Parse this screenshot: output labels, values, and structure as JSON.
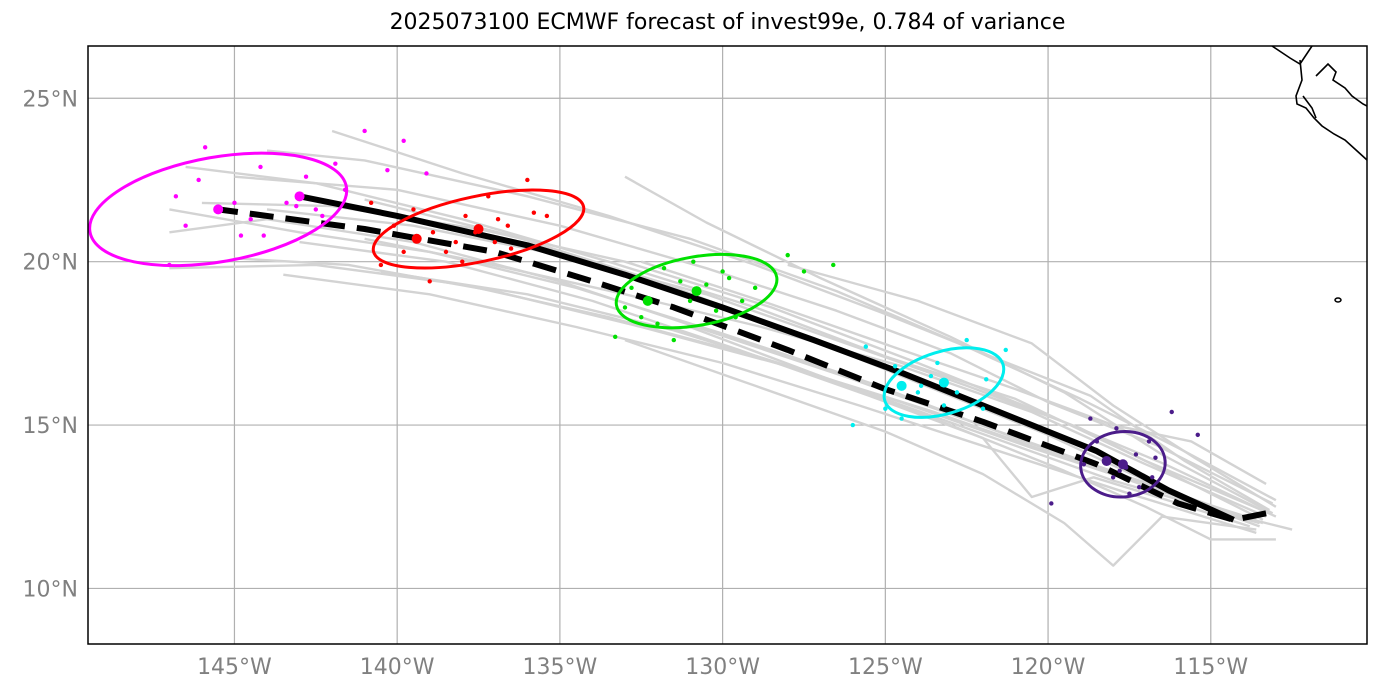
{
  "title": "2025073100 ECMWF forecast of invest99e, 0.784 of variance",
  "axes": {
    "x_ticks": [
      {
        "value": -145,
        "label": "145°W"
      },
      {
        "value": -140,
        "label": "140°W"
      },
      {
        "value": -135,
        "label": "135°W"
      },
      {
        "value": -130,
        "label": "130°W"
      },
      {
        "value": -125,
        "label": "125°W"
      },
      {
        "value": -120,
        "label": "120°W"
      },
      {
        "value": -115,
        "label": "115°W"
      }
    ],
    "y_ticks": [
      {
        "value": 10,
        "label": "10°N"
      },
      {
        "value": 15,
        "label": "15°N"
      },
      {
        "value": 20,
        "label": "20°N"
      },
      {
        "value": 25,
        "label": "25°N"
      }
    ],
    "xlim": [
      -149.5,
      -110.2
    ],
    "ylim": [
      8.3,
      26.6
    ]
  },
  "colors": {
    "grid": "#b0b0b0",
    "tick_label": "#808080",
    "ensemble": "#d3d3d3",
    "magenta": "#ff00ff",
    "red": "#ff0000",
    "green": "#00e000",
    "cyan": "#00eeee",
    "purple": "#4b1c8a",
    "coast": "#000000"
  },
  "chart_data": {
    "type": "line",
    "mean_track": {
      "style": "solid-black",
      "points": [
        [
          -114.3,
          12.1
        ],
        [
          -116.3,
          13.0
        ],
        [
          -118.5,
          14.2
        ],
        [
          -121.0,
          15.2
        ],
        [
          -124.5,
          16.6
        ],
        [
          -127.2,
          17.6
        ],
        [
          -130.0,
          18.6
        ],
        [
          -133.0,
          19.6
        ],
        [
          -136.0,
          20.5
        ],
        [
          -140.0,
          21.4
        ],
        [
          -143.0,
          22.0
        ]
      ]
    },
    "control_track": {
      "style": "dashed-black",
      "points": [
        [
          -113.3,
          12.3
        ],
        [
          -114.3,
          12.1
        ],
        [
          -116.0,
          12.6
        ],
        [
          -118.5,
          13.8
        ],
        [
          -122.0,
          15.1
        ],
        [
          -125.0,
          16.1
        ],
        [
          -128.0,
          17.3
        ],
        [
          -131.5,
          18.6
        ],
        [
          -134.0,
          19.4
        ],
        [
          -137.0,
          20.3
        ],
        [
          -141.0,
          21.0
        ],
        [
          -145.5,
          21.6
        ]
      ]
    },
    "ensemble_members": [
      [
        [
          -113.0,
          12.2
        ],
        [
          -116.4,
          13.8
        ],
        [
          -120.0,
          15.3
        ],
        [
          -124.0,
          16.9
        ],
        [
          -128.5,
          18.6
        ],
        [
          -133.0,
          20.0
        ],
        [
          -137.5,
          21.0
        ],
        [
          -142.0,
          21.7
        ],
        [
          -146.0,
          21.8
        ]
      ],
      [
        [
          -113.5,
          12.0
        ],
        [
          -117.0,
          13.2
        ],
        [
          -121.0,
          14.6
        ],
        [
          -125.5,
          16.3
        ],
        [
          -130.0,
          17.8
        ],
        [
          -134.5,
          19.2
        ],
        [
          -139.0,
          20.3
        ],
        [
          -143.0,
          20.9
        ],
        [
          -147.0,
          21.6
        ]
      ],
      [
        [
          -113.0,
          12.7
        ],
        [
          -116.0,
          14.3
        ],
        [
          -119.0,
          15.8
        ],
        [
          -122.5,
          17.4
        ],
        [
          -126.5,
          19.1
        ],
        [
          -131.0,
          20.7
        ],
        [
          -136.0,
          22.0
        ],
        [
          -141.0,
          23.1
        ],
        [
          -144.0,
          23.4
        ]
      ],
      [
        [
          -113.6,
          12.1
        ],
        [
          -116.8,
          13.1
        ],
        [
          -120.5,
          14.3
        ],
        [
          -124.5,
          15.7
        ],
        [
          -129.0,
          17.1
        ],
        [
          -133.5,
          18.3
        ],
        [
          -138.0,
          19.3
        ],
        [
          -142.5,
          19.9
        ],
        [
          -147.0,
          19.8
        ]
      ],
      [
        [
          -113.2,
          12.4
        ],
        [
          -115.8,
          13.9
        ],
        [
          -118.7,
          15.9
        ],
        [
          -121.5,
          17.0
        ],
        [
          -125.0,
          18.4
        ],
        [
          -129.0,
          19.9
        ],
        [
          -133.5,
          21.4
        ],
        [
          -138.0,
          22.7
        ],
        [
          -142.0,
          24.0
        ]
      ],
      [
        [
          -113.4,
          12.0
        ],
        [
          -117.5,
          13.4
        ],
        [
          -121.5,
          14.8
        ],
        [
          -126.0,
          16.4
        ],
        [
          -130.5,
          17.9
        ],
        [
          -135.0,
          19.4
        ],
        [
          -139.5,
          20.6
        ],
        [
          -144.0,
          21.3
        ],
        [
          -147.0,
          20.9
        ]
      ],
      [
        [
          -113.1,
          12.3
        ],
        [
          -116.5,
          14.1
        ],
        [
          -119.5,
          16.0
        ],
        [
          -123.0,
          17.7
        ],
        [
          -127.0,
          19.5
        ],
        [
          -130.5,
          21.2
        ],
        [
          -133.0,
          22.6
        ]
      ],
      [
        [
          -113.5,
          11.9
        ],
        [
          -116.0,
          12.8
        ],
        [
          -119.5,
          14.0
        ],
        [
          -123.5,
          15.4
        ],
        [
          -128.0,
          16.8
        ],
        [
          -132.5,
          18.0
        ],
        [
          -137.0,
          19.1
        ],
        [
          -141.5,
          19.9
        ],
        [
          -145.0,
          20.1
        ]
      ],
      [
        [
          -113.3,
          12.2
        ],
        [
          -117.0,
          13.8
        ],
        [
          -120.5,
          15.4
        ],
        [
          -124.5,
          16.8
        ],
        [
          -128.8,
          18.0
        ],
        [
          -133.0,
          19.0
        ],
        [
          -137.5,
          20.0
        ],
        [
          -141.0,
          20.7
        ]
      ],
      [
        [
          -113.0,
          12.5
        ],
        [
          -115.5,
          14.0
        ],
        [
          -118.0,
          15.6
        ],
        [
          -120.5,
          17.5
        ],
        [
          -124.0,
          18.8
        ],
        [
          -128.0,
          19.9
        ]
      ],
      [
        [
          -113.6,
          11.8
        ],
        [
          -116.5,
          12.2
        ],
        [
          -118.0,
          10.7
        ],
        [
          -119.5,
          12.0
        ],
        [
          -122.0,
          13.5
        ],
        [
          -125.0,
          14.8
        ],
        [
          -129.0,
          16.2
        ],
        [
          -133.0,
          17.6
        ]
      ],
      [
        [
          -113.8,
          11.9
        ],
        [
          -116.0,
          12.6
        ],
        [
          -118.6,
          13.4
        ],
        [
          -120.5,
          12.8
        ],
        [
          -122.0,
          14.6
        ],
        [
          -125.5,
          15.9
        ],
        [
          -129.5,
          17.3
        ],
        [
          -134.0,
          18.8
        ],
        [
          -138.5,
          20.0
        ],
        [
          -143.0,
          20.6
        ]
      ],
      [
        [
          -113.1,
          12.6
        ],
        [
          -116.7,
          14.4
        ],
        [
          -120.0,
          15.7
        ],
        [
          -123.0,
          17.2
        ],
        [
          -126.5,
          18.5
        ],
        [
          -130.5,
          19.8
        ],
        [
          -135.0,
          21.1
        ],
        [
          -140.0,
          22.2
        ],
        [
          -145.0,
          22.6
        ]
      ],
      [
        [
          -113.5,
          12.0
        ],
        [
          -118.0,
          13.3
        ],
        [
          -122.5,
          14.9
        ],
        [
          -127.0,
          16.5
        ],
        [
          -131.5,
          17.9
        ],
        [
          -136.0,
          19.0
        ],
        [
          -140.5,
          19.7
        ]
      ],
      [
        [
          -113.2,
          12.3
        ],
        [
          -117.0,
          13.9
        ],
        [
          -121.0,
          15.8
        ],
        [
          -125.0,
          17.1
        ],
        [
          -129.0,
          18.6
        ],
        [
          -133.5,
          20.0
        ],
        [
          -138.0,
          21.3
        ],
        [
          -142.5,
          22.4
        ],
        [
          -146.5,
          22.9
        ]
      ],
      [
        [
          -113.4,
          12.1
        ],
        [
          -116.2,
          13.5
        ],
        [
          -119.0,
          14.9
        ],
        [
          -122.5,
          16.2
        ],
        [
          -126.5,
          17.6
        ],
        [
          -130.5,
          19.0
        ],
        [
          -135.0,
          20.2
        ],
        [
          -139.5,
          21.1
        ],
        [
          -144.0,
          21.6
        ]
      ],
      [
        [
          -113.0,
          11.5
        ],
        [
          -115.0,
          11.5
        ],
        [
          -117.0,
          12.5
        ],
        [
          -119.5,
          13.6
        ],
        [
          -123.0,
          15.0
        ],
        [
          -127.0,
          16.5
        ],
        [
          -131.0,
          18.0
        ]
      ],
      [
        [
          -112.5,
          11.8
        ],
        [
          -114.5,
          12.3
        ],
        [
          -117.0,
          13.3
        ],
        [
          -120.0,
          14.7
        ],
        [
          -124.0,
          16.3
        ],
        [
          -128.0,
          17.9
        ],
        [
          -132.0,
          19.4
        ],
        [
          -136.5,
          20.8
        ],
        [
          -141.0,
          21.9
        ]
      ],
      [
        [
          -113.3,
          13.2
        ],
        [
          -115.6,
          14.5
        ],
        [
          -118.0,
          15.0
        ],
        [
          -121.0,
          16.1
        ],
        [
          -124.5,
          17.3
        ],
        [
          -128.5,
          18.7
        ],
        [
          -132.5,
          20.0
        ]
      ],
      [
        [
          -113.6,
          11.7
        ],
        [
          -117.5,
          12.9
        ],
        [
          -121.5,
          14.2
        ],
        [
          -125.8,
          15.6
        ],
        [
          -130.0,
          16.9
        ],
        [
          -134.5,
          18.0
        ],
        [
          -139.0,
          19.0
        ],
        [
          -143.5,
          19.6
        ]
      ]
    ],
    "clusters": [
      {
        "color_key": "magenta",
        "center": [
          -145.5,
          21.6
        ],
        "ellipse": {
          "rx_deg": 4.0,
          "ry_deg": 1.6,
          "angle_deg": -10
        },
        "mean": [
          -143.0,
          22.0
        ],
        "points": [
          [
            -147,
            19.9
          ],
          [
            -145.9,
            23.5
          ],
          [
            -144.5,
            21.3
          ],
          [
            -143.4,
            21.8
          ],
          [
            -142.8,
            22.6
          ],
          [
            -141.9,
            23.0
          ],
          [
            -141.0,
            24.0
          ],
          [
            -140.3,
            22.8
          ],
          [
            -139.1,
            22.7
          ],
          [
            -144.8,
            20.8
          ],
          [
            -146.1,
            22.5
          ],
          [
            -143.1,
            21.7
          ],
          [
            -142.3,
            21.4
          ],
          [
            -144.1,
            20.8
          ],
          [
            -146.8,
            22.0
          ],
          [
            -145.0,
            21.8
          ],
          [
            -142.5,
            21.6
          ],
          [
            -144.2,
            22.9
          ],
          [
            -141.6,
            22.2
          ],
          [
            -139.8,
            23.7
          ],
          [
            -146.5,
            21.1
          ]
        ]
      },
      {
        "color_key": "red",
        "center": [
          -137.5,
          21.0
        ],
        "ellipse": {
          "rx_deg": 3.3,
          "ry_deg": 1.0,
          "angle_deg": -12
        },
        "mean": [
          -139.4,
          20.7
        ],
        "points": [
          [
            -140.5,
            19.9
          ],
          [
            -139.0,
            19.4
          ],
          [
            -138.2,
            20.6
          ],
          [
            -137.6,
            20.9
          ],
          [
            -136.6,
            21.1
          ],
          [
            -136.0,
            22.5
          ],
          [
            -135.4,
            21.4
          ],
          [
            -137.9,
            21.4
          ],
          [
            -138.9,
            20.9
          ],
          [
            -136.5,
            20.4
          ],
          [
            -140.1,
            21.1
          ],
          [
            -137.2,
            22.0
          ],
          [
            -139.5,
            21.6
          ],
          [
            -136.9,
            21.3
          ],
          [
            -138.5,
            20.3
          ],
          [
            -135.8,
            21.5
          ],
          [
            -140.8,
            21.8
          ],
          [
            -139.8,
            20.3
          ],
          [
            -137.0,
            20.6
          ],
          [
            -138.0,
            20.0
          ]
        ]
      },
      {
        "color_key": "green",
        "center": [
          -130.8,
          19.1
        ],
        "ellipse": {
          "rx_deg": 2.5,
          "ry_deg": 1.05,
          "angle_deg": -10
        },
        "mean": [
          -132.3,
          18.8
        ],
        "points": [
          [
            -133.3,
            17.7
          ],
          [
            -132.5,
            18.3
          ],
          [
            -131.5,
            17.6
          ],
          [
            -131.0,
            18.8
          ],
          [
            -130.5,
            19.3
          ],
          [
            -129.8,
            19.5
          ],
          [
            -129.0,
            19.2
          ],
          [
            -130.2,
            18.5
          ],
          [
            -131.8,
            19.8
          ],
          [
            -132.8,
            19.2
          ],
          [
            -129.4,
            18.8
          ],
          [
            -130.9,
            20.0
          ],
          [
            -128.0,
            20.2
          ],
          [
            -127.5,
            19.7
          ],
          [
            -126.6,
            19.9
          ],
          [
            -132.0,
            18.1
          ],
          [
            -129.6,
            18.3
          ],
          [
            -130.0,
            19.7
          ],
          [
            -131.3,
            19.4
          ],
          [
            -133.0,
            18.6
          ]
        ]
      },
      {
        "color_key": "cyan",
        "center": [
          -123.2,
          16.3
        ],
        "ellipse": {
          "rx_deg": 1.9,
          "ry_deg": 0.95,
          "angle_deg": -17
        },
        "mean": [
          -124.5,
          16.2
        ],
        "points": [
          [
            -125.0,
            15.5
          ],
          [
            -124.5,
            15.2
          ],
          [
            -124.0,
            16.0
          ],
          [
            -123.6,
            16.5
          ],
          [
            -123.2,
            15.6
          ],
          [
            -122.8,
            16.0
          ],
          [
            -122.5,
            17.6
          ],
          [
            -124.7,
            16.8
          ],
          [
            -123.9,
            16.2
          ],
          [
            -121.3,
            17.3
          ],
          [
            -125.6,
            17.4
          ],
          [
            -126.0,
            15.0
          ],
          [
            -122.0,
            15.5
          ],
          [
            -123.4,
            16.9
          ],
          [
            -121.9,
            16.4
          ]
        ]
      },
      {
        "color_key": "purple",
        "center": [
          -117.7,
          13.8
        ],
        "ellipse": {
          "rx_deg": 1.3,
          "ry_deg": 1.0,
          "angle_deg": -5
        },
        "mean": [
          -118.2,
          13.9
        ],
        "points": [
          [
            -118.5,
            14.5
          ],
          [
            -118.0,
            13.4
          ],
          [
            -117.6,
            13.7
          ],
          [
            -117.3,
            14.1
          ],
          [
            -116.9,
            14.5
          ],
          [
            -116.8,
            13.4
          ],
          [
            -118.9,
            13.8
          ],
          [
            -117.9,
            14.9
          ],
          [
            -117.2,
            13.1
          ],
          [
            -116.2,
            15.4
          ],
          [
            -119.9,
            12.6
          ],
          [
            -118.7,
            15.2
          ],
          [
            -117.5,
            12.9
          ],
          [
            -116.7,
            14.0
          ],
          [
            -117.8,
            13.6
          ],
          [
            -115.4,
            14.7
          ]
        ]
      }
    ]
  }
}
